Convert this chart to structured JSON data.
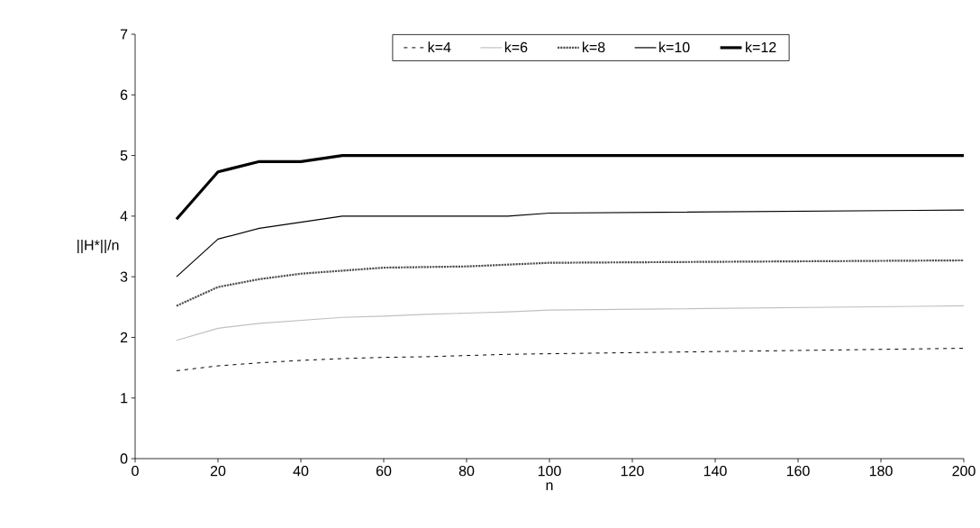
{
  "chart_data": {
    "type": "line",
    "xlabel": "n",
    "ylabel": "||H*||/n",
    "x": [
      10,
      20,
      30,
      40,
      50,
      60,
      70,
      80,
      90,
      100,
      200
    ],
    "series": [
      {
        "name": "k=4",
        "color": "#000000",
        "line_style": "dashed",
        "values": [
          1.45,
          1.53,
          1.58,
          1.62,
          1.65,
          1.67,
          1.68,
          1.7,
          1.72,
          1.73,
          1.82
        ]
      },
      {
        "name": "k=6",
        "color": "#c0c0c0",
        "line_style": "solid",
        "values": [
          1.95,
          2.15,
          2.23,
          2.28,
          2.33,
          2.35,
          2.38,
          2.4,
          2.42,
          2.45,
          2.52
        ]
      },
      {
        "name": "k=8",
        "color": "#505050",
        "line_style": "dotted",
        "values": [
          2.52,
          2.83,
          2.96,
          3.05,
          3.1,
          3.15,
          3.16,
          3.17,
          3.2,
          3.23,
          3.27
        ]
      },
      {
        "name": "k=10",
        "color": "#000000",
        "line_style": "solid",
        "values": [
          3.0,
          3.62,
          3.8,
          3.9,
          4.0,
          4.0,
          4.0,
          4.0,
          4.0,
          4.05,
          4.1
        ]
      },
      {
        "name": "k=12",
        "color": "#000000",
        "line_style": "solid",
        "values": [
          3.95,
          4.73,
          4.9,
          4.9,
          5.0,
          5.0,
          5.0,
          5.0,
          5.0,
          5.0,
          5.0
        ]
      }
    ],
    "xlim": [
      0,
      200
    ],
    "xticks": [
      0,
      20,
      40,
      60,
      80,
      100,
      120,
      140,
      160,
      180,
      200
    ],
    "ylim": [
      0,
      7
    ],
    "yticks": [
      0,
      1,
      2,
      3,
      4,
      5,
      6,
      7
    ],
    "grid": false,
    "legend": "top",
    "marker": "none"
  }
}
